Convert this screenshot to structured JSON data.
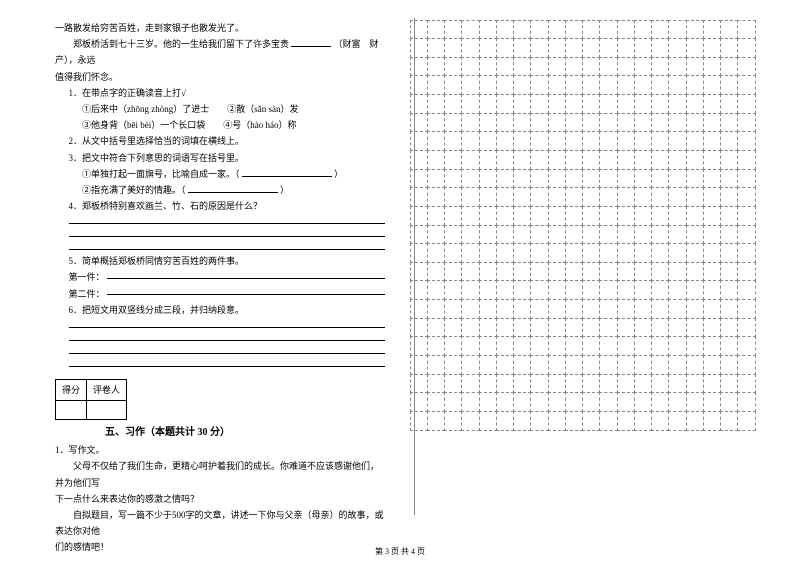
{
  "left": {
    "l1": "一路散发给穷苦百姓，走到家银子也散发光了。",
    "l2a": "郑板桥活到七十三岁。他的一生给我们留下了许多宝贵",
    "l2b": "（财富　财产），永远",
    "l3": "值得我们怀念。",
    "q1": "1．在带点字的正确读音上打√",
    "q1a": "①后来中（zhōng zhòng）了进士　　②散（sǎn sàn）发",
    "q1b": "③他身背（bēi bèi）一个长口袋　　④号（hào háo）称",
    "q2": "2．从文中括号里选择恰当的词填在横线上。",
    "q3": "3．把文中符合下列意思的词语写在括号里。",
    "q3a": "①单独打起一面旗号，比喻自成一家。（",
    "q3a_end": "）",
    "q3b": "②指充满了美好的情趣。（",
    "q3b_end": "）",
    "q4": "4．郑板桥特别喜欢画兰、竹、石的原因是什么？",
    "q5": "5．简单概括郑板桥同情穷苦百姓的两件事。",
    "q5a": "第一件：",
    "q5b": "第二件：",
    "q6": "6．把短文用双竖线分成三段，并归纳段意。",
    "score_a": "得分",
    "score_b": "评卷人",
    "sec_title": "五、习作（本题共计 30 分）",
    "w1": "1．写作文。",
    "w2": "父母不仅给了我们生命，更精心呵护着我们的成长。你难道不应该感谢他们，并为他们写",
    "w3": "下一点什么来表达你的感激之情吗？",
    "w4": "自拟题目，写一篇不少于500字的文章，讲述一下你与父亲（母亲）的故事，或表达你对他",
    "w5": "们的感情吧！"
  },
  "footer": "第 3 页 共 4 页",
  "style": {
    "background_color": "#ffffff",
    "text_color": "#000000",
    "grid_border": "#888888",
    "grid_cols": 20,
    "grid_rows": 22,
    "font_size_body": 9,
    "font_size_title": 10,
    "font_size_footer": 8,
    "font_family": "SimSun"
  }
}
